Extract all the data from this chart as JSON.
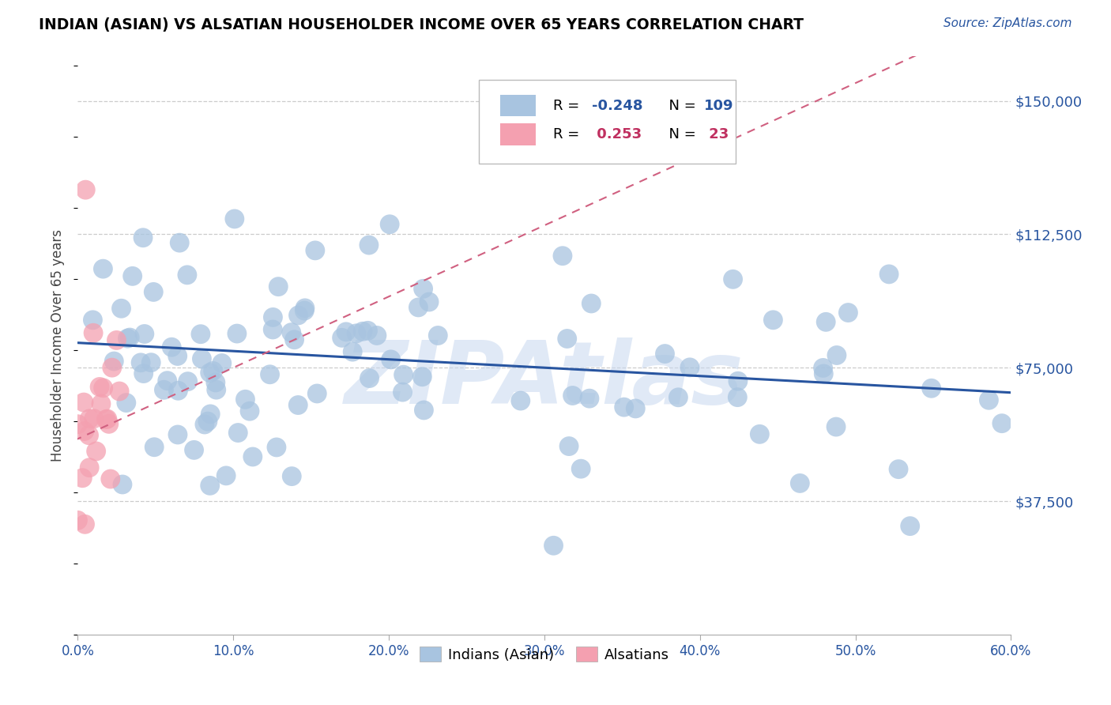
{
  "title": "INDIAN (ASIAN) VS ALSATIAN HOUSEHOLDER INCOME OVER 65 YEARS CORRELATION CHART",
  "source": "Source: ZipAtlas.com",
  "ylabel": "Householder Income Over 65 years",
  "xlim": [
    0.0,
    0.6
  ],
  "ylim": [
    0,
    162500
  ],
  "yticks": [
    0,
    37500,
    75000,
    112500,
    150000
  ],
  "ytick_labels": [
    "",
    "$37,500",
    "$75,000",
    "$112,500",
    "$150,000"
  ],
  "xtick_labels": [
    "0.0%",
    "10.0%",
    "20.0%",
    "30.0%",
    "40.0%",
    "50.0%",
    "60.0%"
  ],
  "xticks": [
    0.0,
    0.1,
    0.2,
    0.3,
    0.4,
    0.5,
    0.6
  ],
  "R_indian": -0.248,
  "N_indian": 109,
  "R_alsatian": 0.253,
  "N_alsatian": 23,
  "blue_color": "#a8c4e0",
  "pink_color": "#f4a0b0",
  "blue_line_color": "#2855a0",
  "pink_line_color": "#d06080",
  "watermark": "ZIPAtlas",
  "watermark_color": "#c8d8f0",
  "blue_label_color": "#2855a0",
  "pink_label_color": "#c03060"
}
